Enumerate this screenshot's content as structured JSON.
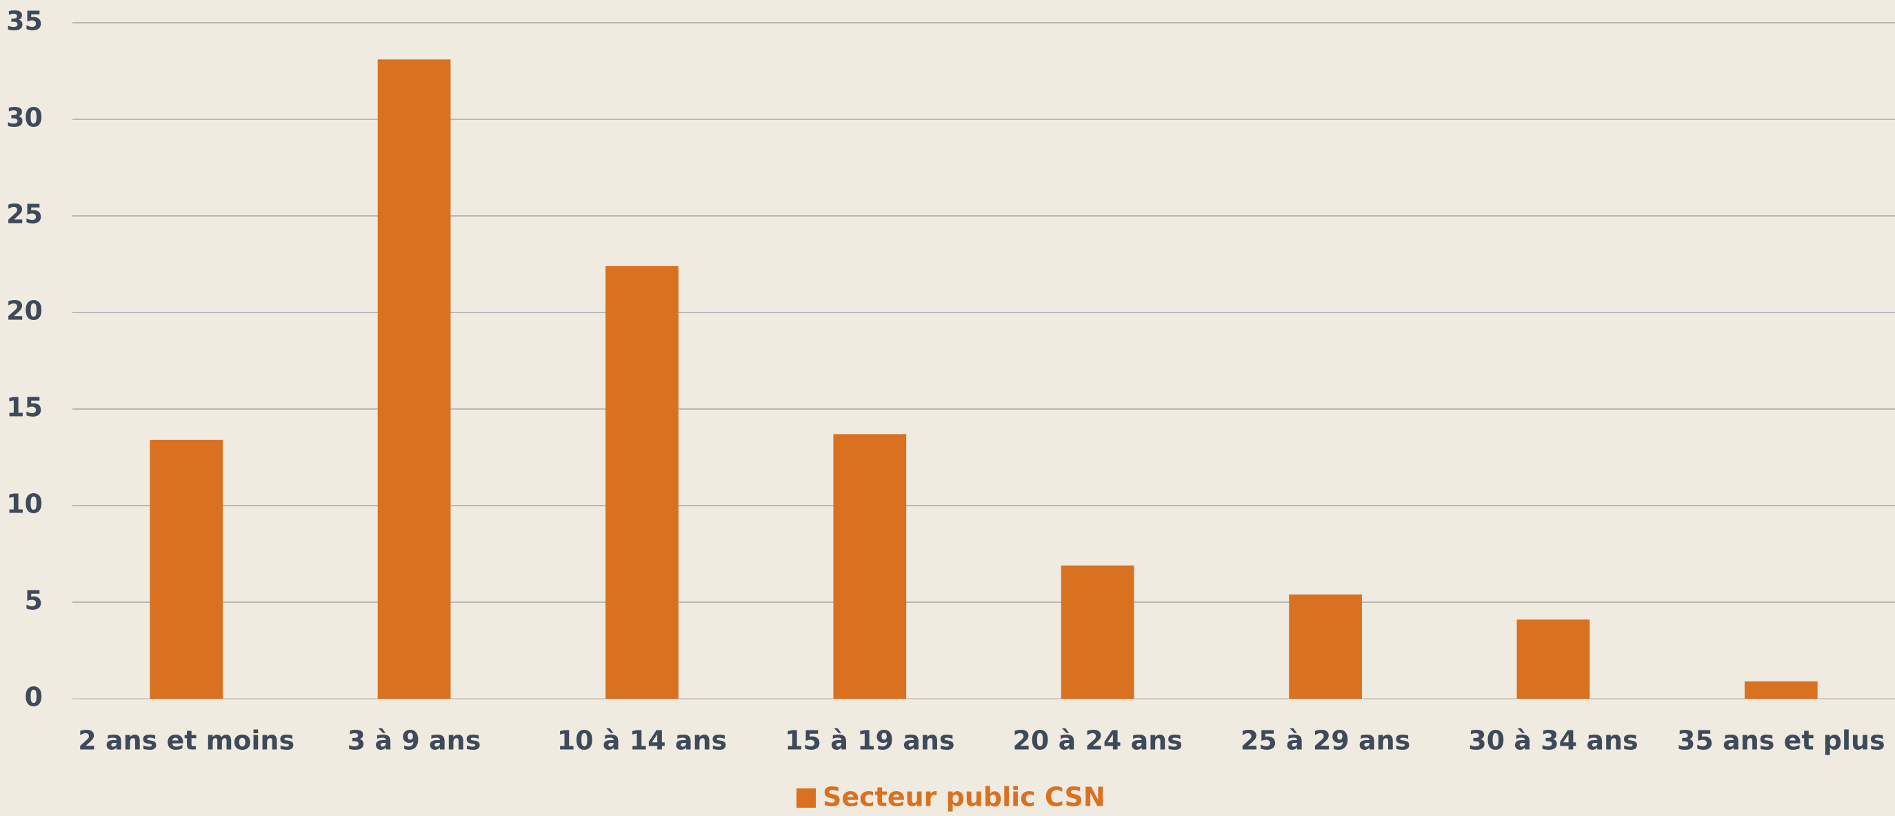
{
  "chart_data": {
    "type": "bar",
    "categories": [
      "2 ans et moins",
      "3 à 9 ans",
      "10 à 14 ans",
      "15 à 19 ans",
      "20 à 24 ans",
      "25 à 29 ans",
      "30 à 34 ans",
      "35 ans et plus"
    ],
    "series": [
      {
        "name": "Secteur public CSN",
        "color": "#d97120",
        "values": [
          13.4,
          33.1,
          22.4,
          13.7,
          6.9,
          5.4,
          4.1,
          0.9
        ]
      }
    ],
    "ylim": [
      0,
      35
    ],
    "yticks": [
      0,
      5,
      10,
      15,
      20,
      25,
      30,
      35
    ],
    "grid": true,
    "legend": "bottom"
  }
}
